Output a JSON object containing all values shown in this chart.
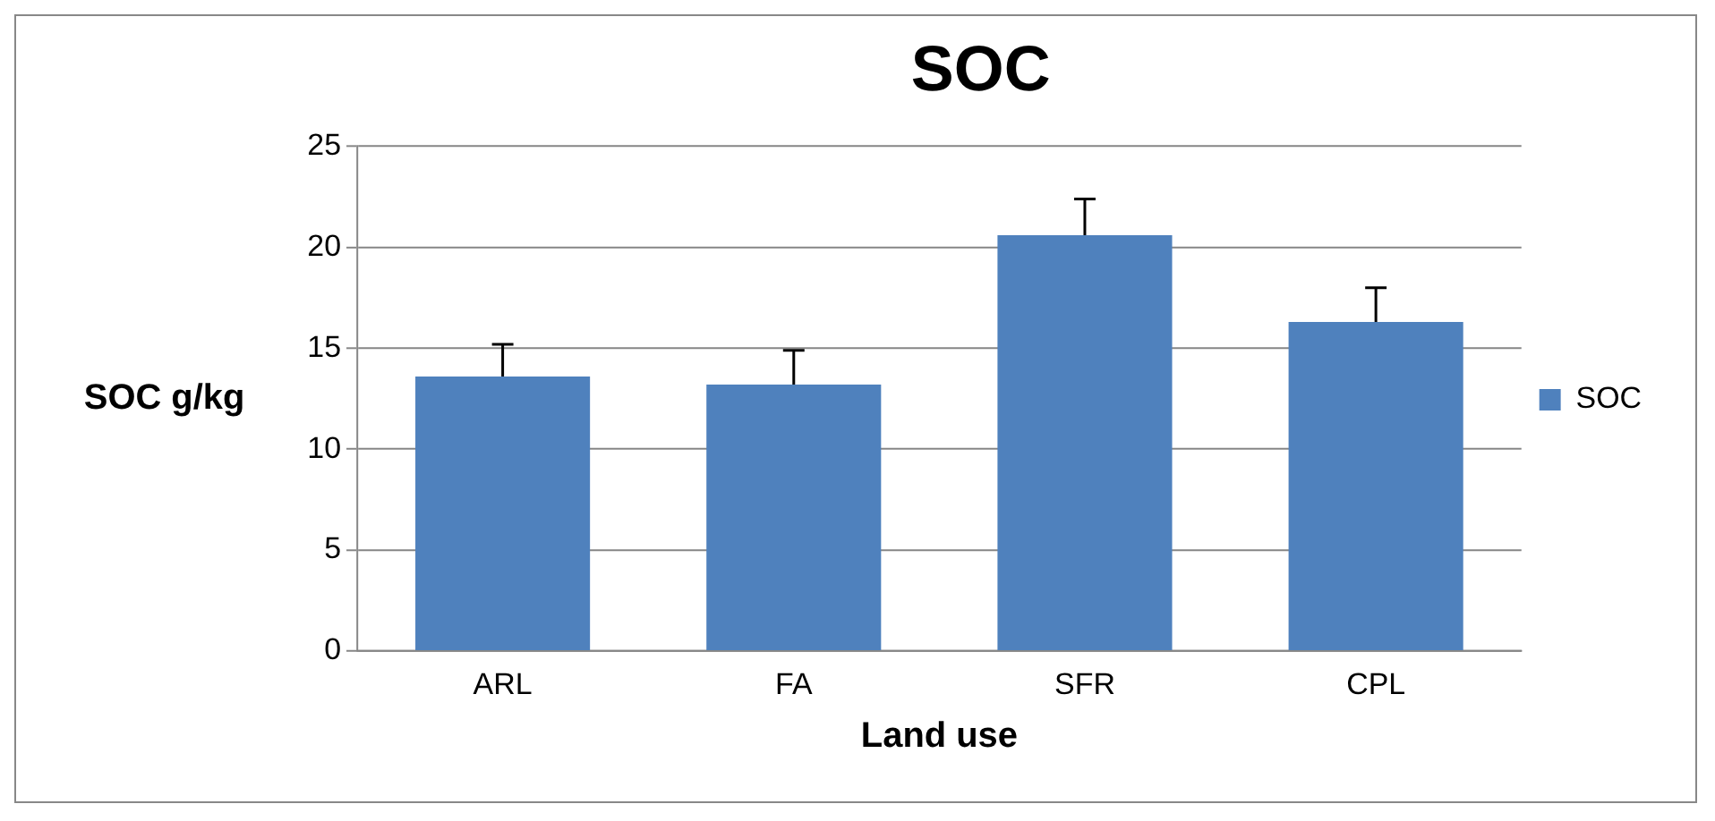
{
  "chart_data": {
    "type": "bar",
    "title": "SOC",
    "xlabel": "Land use",
    "ylabel": "SOC g/kg",
    "categories": [
      "ARL",
      "FA",
      "SFR",
      "CPL"
    ],
    "series": [
      {
        "name": "SOC",
        "color": "#4f81bd",
        "values": [
          13.6,
          13.2,
          20.6,
          16.3
        ],
        "errors": [
          [
            13.6,
            15.2
          ],
          [
            13.2,
            14.9
          ],
          [
            20.6,
            22.4
          ],
          [
            16.3,
            18.0
          ]
        ]
      }
    ],
    "ylim": [
      0,
      25
    ],
    "yticks": [
      0,
      5,
      10,
      15,
      20,
      25
    ],
    "grid": "y",
    "legend": "right"
  }
}
